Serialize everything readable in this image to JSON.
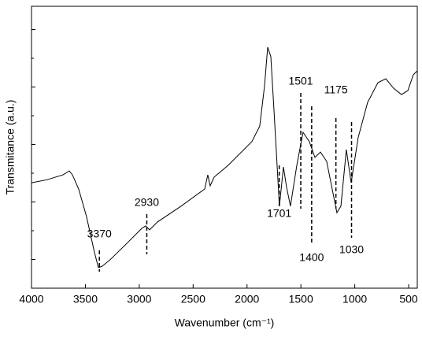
{
  "chart_data": {
    "type": "line",
    "x_label": "Wavenumber (cm⁻¹)",
    "y_label": "Transmitance (a.u.)",
    "x": [
      4000,
      3854,
      3708,
      3649,
      3620,
      3562,
      3489,
      3416,
      3379,
      3343,
      3270,
      3123,
      2977,
      2941,
      2904,
      2831,
      2612,
      2393,
      2364,
      2342,
      2305,
      2174,
      1955,
      1882,
      1838,
      1808,
      1779,
      1750,
      1699,
      1662,
      1633,
      1597,
      1538,
      1480,
      1422,
      1370,
      1319,
      1261,
      1166,
      1129,
      1078,
      1034,
      969,
      881,
      785,
      712,
      639,
      566,
      507,
      457,
      420
    ],
    "series": [
      {
        "color": "#000000",
        "values": [
          37.4,
          38.5,
          40.2,
          41.6,
          40.2,
          35.2,
          25.4,
          12.8,
          7.3,
          7.8,
          10.1,
          15.6,
          21.2,
          22.1,
          20.7,
          23.5,
          29.1,
          35.2,
          40.2,
          36.3,
          39.4,
          43.6,
          52.0,
          57.5,
          71.5,
          85.5,
          82.1,
          63.1,
          29.1,
          43.0,
          35.8,
          29.1,
          43.6,
          55.3,
          52.0,
          46.4,
          48.3,
          45.0,
          26.8,
          29.1,
          49.2,
          37.4,
          53.4,
          65.9,
          72.9,
          74.3,
          70.9,
          68.7,
          70.1,
          75.7,
          77.1
        ]
      }
    ],
    "xlim": [
      4000,
      420
    ],
    "ylim": [
      0,
      100
    ],
    "xticks": [
      4000,
      3500,
      3000,
      2500,
      2000,
      1500,
      1000,
      500
    ],
    "annotations": [
      3370,
      2930,
      1701,
      1501,
      1400,
      1175,
      1030
    ]
  }
}
